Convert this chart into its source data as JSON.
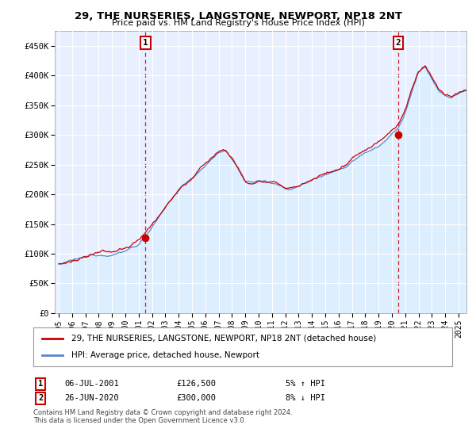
{
  "title": "29, THE NURSERIES, LANGSTONE, NEWPORT, NP18 2NT",
  "subtitle": "Price paid vs. HM Land Registry's House Price Index (HPI)",
  "ylabel_ticks": [
    "£0",
    "£50K",
    "£100K",
    "£150K",
    "£200K",
    "£250K",
    "£300K",
    "£350K",
    "£400K",
    "£450K"
  ],
  "ytick_values": [
    0,
    50000,
    100000,
    150000,
    200000,
    250000,
    300000,
    350000,
    400000,
    450000
  ],
  "ylim": [
    0,
    475000
  ],
  "xlim_start": 1994.7,
  "xlim_end": 2025.6,
  "sale_color": "#cc0000",
  "hpi_color": "#5588cc",
  "hpi_fill_color": "#ddeeff",
  "sale_point1_x": 2001.51,
  "sale_point1_y": 126500,
  "sale_point2_x": 2020.48,
  "sale_point2_y": 300000,
  "annotation1_label": "1",
  "annotation2_label": "2",
  "annotation1_date": "06-JUL-2001",
  "annotation1_price": "£126,500",
  "annotation1_hpi": "5% ↑ HPI",
  "annotation2_date": "26-JUN-2020",
  "annotation2_price": "£300,000",
  "annotation2_hpi": "8% ↓ HPI",
  "legend_label1": "29, THE NURSERIES, LANGSTONE, NEWPORT, NP18 2NT (detached house)",
  "legend_label2": "HPI: Average price, detached house, Newport",
  "footer1": "Contains HM Land Registry data © Crown copyright and database right 2024.",
  "footer2": "This data is licensed under the Open Government Licence v3.0.",
  "xtick_years": [
    1995,
    1996,
    1997,
    1998,
    1999,
    2000,
    2001,
    2002,
    2003,
    2004,
    2005,
    2006,
    2007,
    2008,
    2009,
    2010,
    2011,
    2012,
    2013,
    2014,
    2015,
    2016,
    2017,
    2018,
    2019,
    2020,
    2021,
    2022,
    2023,
    2024,
    2025
  ],
  "background_color": "#e8f0ff"
}
